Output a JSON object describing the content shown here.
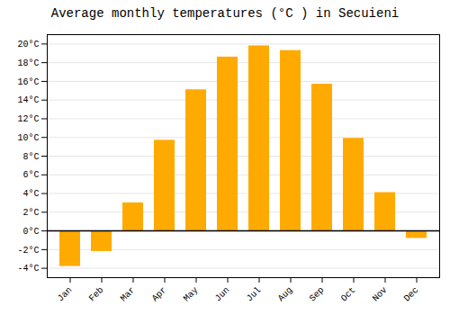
{
  "chart_data": {
    "type": "bar",
    "title": "Average monthly temperatures (°C ) in Secuieni",
    "categories": [
      "Jan",
      "Feb",
      "Mar",
      "Apr",
      "May",
      "Jun",
      "Jul",
      "Aug",
      "Sep",
      "Oct",
      "Nov",
      "Dec"
    ],
    "values": [
      -3.8,
      -2.2,
      3.0,
      9.7,
      15.1,
      18.6,
      19.8,
      19.3,
      15.7,
      9.9,
      4.1,
      -0.8
    ],
    "color": "#FFAA00",
    "ylim": [
      -5,
      21
    ],
    "yticks": [
      {
        "value": -4,
        "label": "-4°C"
      },
      {
        "value": -2,
        "label": "-2°C"
      },
      {
        "value": 0,
        "label": "0°C"
      },
      {
        "value": 2,
        "label": "2°C"
      },
      {
        "value": 4,
        "label": "4°C"
      },
      {
        "value": 6,
        "label": "6°C"
      },
      {
        "value": 8,
        "label": "8°C"
      },
      {
        "value": 10,
        "label": "10°C"
      },
      {
        "value": 12,
        "label": "12°C"
      },
      {
        "value": 14,
        "label": "14°C"
      },
      {
        "value": 16,
        "label": "16°C"
      },
      {
        "value": 18,
        "label": "18°C"
      },
      {
        "value": 20,
        "label": "20°C"
      }
    ],
    "grid": true
  }
}
